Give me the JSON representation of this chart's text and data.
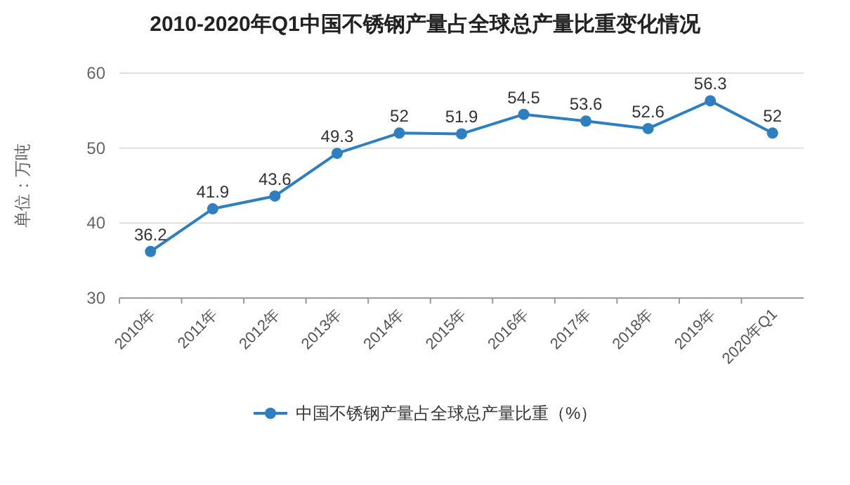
{
  "chart_data": {
    "type": "line",
    "title": "2010-2020年Q1中国不锈钢产量占全球总产量比重变化情况",
    "ylabel": "单位：万吨",
    "categories": [
      "2010年",
      "2011年",
      "2012年",
      "2013年",
      "2014年",
      "2015年",
      "2016年",
      "2017年",
      "2018年",
      "2019年",
      "2020年Q1"
    ],
    "series": [
      {
        "name": "中国不锈钢产量占全球总产量比重（%）",
        "color": "#2f7ec0",
        "values": [
          36.2,
          41.9,
          43.6,
          49.3,
          52,
          51.9,
          54.5,
          53.6,
          52.6,
          56.3,
          52
        ]
      }
    ],
    "ylim": [
      30,
      60
    ],
    "yticks": [
      30,
      40,
      50,
      60
    ],
    "grid": "y",
    "legend": "bottom",
    "marker": "circle",
    "data_labels": true
  }
}
